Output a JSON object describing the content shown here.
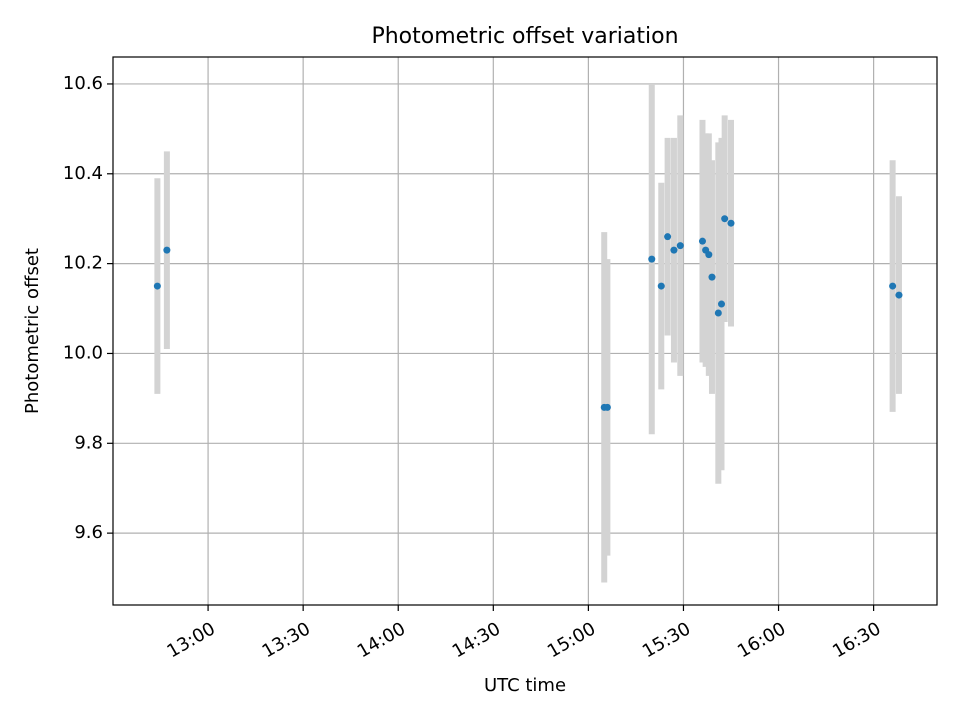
{
  "chart_data": {
    "type": "scatter",
    "title": "Photometric offset variation",
    "xlabel": "UTC time",
    "ylabel": "Photometric offset",
    "x_ticks": [
      "13:00",
      "13:30",
      "14:00",
      "14:30",
      "15:00",
      "15:30",
      "16:00",
      "16:30"
    ],
    "y_ticks": [
      "9.6",
      "9.8",
      "10.0",
      "10.2",
      "10.4",
      "10.6"
    ],
    "xlim": [
      "12:30",
      "16:50"
    ],
    "ylim": [
      9.44,
      10.66
    ],
    "grid": true,
    "colors": {
      "points": "#1f77b4",
      "errorbars": "#d3d3d3",
      "grid": "#b0b0b0"
    },
    "series": [
      {
        "points": [
          {
            "x": "12:44",
            "y": 10.15,
            "err": 0.24
          },
          {
            "x": "12:47",
            "y": 10.23,
            "err": 0.22
          },
          {
            "x": "15:05",
            "y": 9.88,
            "err": 0.39
          },
          {
            "x": "15:06",
            "y": 9.88,
            "err": 0.33
          },
          {
            "x": "15:20",
            "y": 10.21,
            "err": 0.39
          },
          {
            "x": "15:23",
            "y": 10.15,
            "err": 0.23
          },
          {
            "x": "15:25",
            "y": 10.26,
            "err": 0.22
          },
          {
            "x": "15:27",
            "y": 10.23,
            "err": 0.25
          },
          {
            "x": "15:29",
            "y": 10.24,
            "err": 0.29
          },
          {
            "x": "15:36",
            "y": 10.25,
            "err": 0.27
          },
          {
            "x": "15:37",
            "y": 10.23,
            "err": 0.26
          },
          {
            "x": "15:38",
            "y": 10.22,
            "err": 0.27
          },
          {
            "x": "15:39",
            "y": 10.17,
            "err": 0.26
          },
          {
            "x": "15:41",
            "y": 10.09,
            "err": 0.38
          },
          {
            "x": "15:42",
            "y": 10.11,
            "err": 0.37
          },
          {
            "x": "15:43",
            "y": 10.3,
            "err": 0.23
          },
          {
            "x": "15:45",
            "y": 10.29,
            "err": 0.23
          },
          {
            "x": "16:36",
            "y": 10.15,
            "err": 0.28
          },
          {
            "x": "16:38",
            "y": 10.13,
            "err": 0.22
          }
        ]
      }
    ]
  }
}
